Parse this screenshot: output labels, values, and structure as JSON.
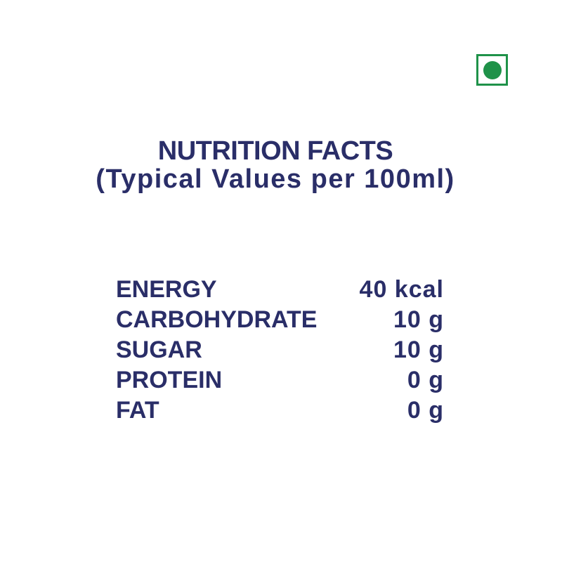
{
  "colors": {
    "text_navy": "#2a2e68",
    "veg_green": "#1f9249",
    "background": "#ffffff"
  },
  "veg_mark": {
    "meaning": "vegetarian food symbol"
  },
  "header": {
    "title": "NUTRITION FACTS",
    "subtitle": "(Typical Values per 100ml)"
  },
  "nutrition_table": {
    "rows": [
      {
        "label": "ENERGY",
        "value": "40 kcal"
      },
      {
        "label": "CARBOHYDRATE",
        "value": "10 g"
      },
      {
        "label": "SUGAR",
        "value": "10 g"
      },
      {
        "label": "PROTEIN",
        "value": "0 g"
      },
      {
        "label": "FAT",
        "value": "0 g"
      }
    ]
  }
}
